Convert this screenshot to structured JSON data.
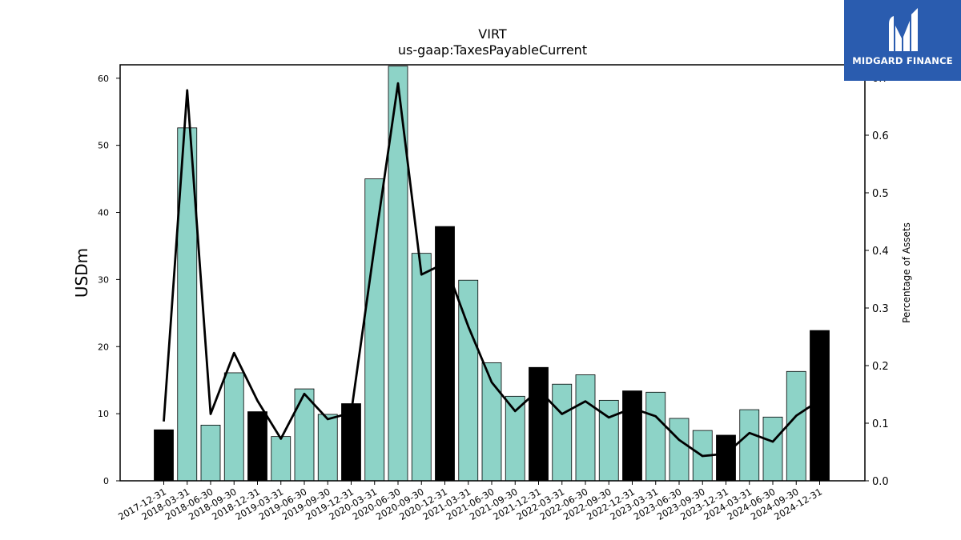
{
  "chart_data": {
    "type": "bar",
    "title": "VIRT",
    "subtitle": "us-gaap:TaxesPayableCurrent",
    "ylabel": "USDm",
    "y2label": "Percentage of Assets",
    "ylim": [
      0,
      62
    ],
    "y2lim": [
      0,
      0.7222
    ],
    "yticks": [
      0,
      10,
      20,
      30,
      40,
      50,
      60
    ],
    "y2ticks": [
      0.0,
      0.1,
      0.2,
      0.3,
      0.4,
      0.5,
      0.6,
      0.7
    ],
    "categories": [
      "2017-12-31",
      "2018-03-31",
      "2018-06-30",
      "2018-09-30",
      "2018-12-31",
      "2019-03-31",
      "2019-06-30",
      "2019-09-30",
      "2019-12-31",
      "2020-03-31",
      "2020-06-30",
      "2020-09-30",
      "2020-12-31",
      "2021-03-31",
      "2021-06-30",
      "2021-09-30",
      "2021-12-31",
      "2022-03-31",
      "2022-06-30",
      "2022-09-30",
      "2022-12-31",
      "2023-03-31",
      "2023-06-30",
      "2023-09-30",
      "2023-12-31",
      "2024-03-31",
      "2024-06-30",
      "2024-09-30",
      "2024-12-31"
    ],
    "series": [
      {
        "type": "bar",
        "values": [
          7.6,
          52.6,
          8.3,
          16.1,
          10.3,
          6.6,
          13.7,
          9.9,
          11.5,
          45.0,
          61.8,
          33.9,
          37.9,
          29.9,
          17.6,
          12.6,
          16.9,
          14.4,
          15.8,
          12.0,
          13.4,
          13.2,
          9.3,
          7.5,
          6.8,
          10.6,
          9.5,
          16.3,
          22.4
        ],
        "year_end_color": "#000000",
        "quarter_color": "#8dd3c7"
      },
      {
        "type": "line",
        "axis": "right",
        "values": [
          0.103,
          0.678,
          0.116,
          0.222,
          0.139,
          0.073,
          0.151,
          0.107,
          0.118,
          0.408,
          0.69,
          0.358,
          0.378,
          0.268,
          0.171,
          0.121,
          0.158,
          0.116,
          0.138,
          0.11,
          0.126,
          0.112,
          0.071,
          0.043,
          0.047,
          0.083,
          0.068,
          0.113,
          0.14
        ],
        "color": "#000000"
      }
    ],
    "grid": false
  },
  "logo": {
    "text": "MIDGARD FINANCE",
    "color": "#2a5caf"
  }
}
